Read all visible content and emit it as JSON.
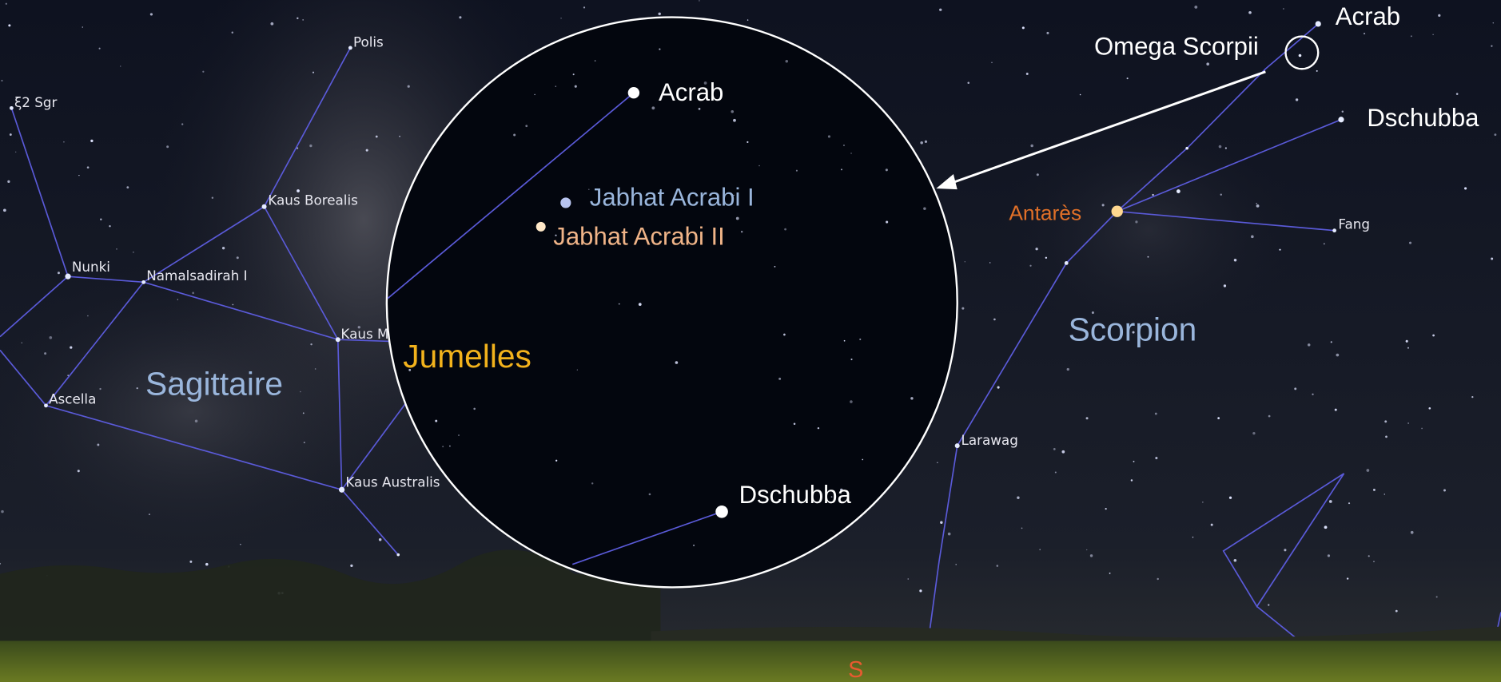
{
  "sky_labels": {
    "stars": [
      "Polis",
      "ξ2 Sgr",
      "Kaus Borealis",
      "Nunki",
      "Namalsadirah I",
      "Kaus M",
      "Ascella",
      "Kaus Australis",
      "Antarès",
      "Fang",
      "Larawag",
      "Acrab",
      "Dschubba",
      "Omega Scorpii"
    ],
    "constellations": [
      "Sagittaire",
      "Scorpion"
    ]
  },
  "binocular_view": {
    "title": "Jumelles",
    "stars": [
      "Acrab",
      "Jabhat Acrabi I",
      "Jabhat Acrabi II",
      "Dschubba"
    ]
  },
  "compass": "S"
}
